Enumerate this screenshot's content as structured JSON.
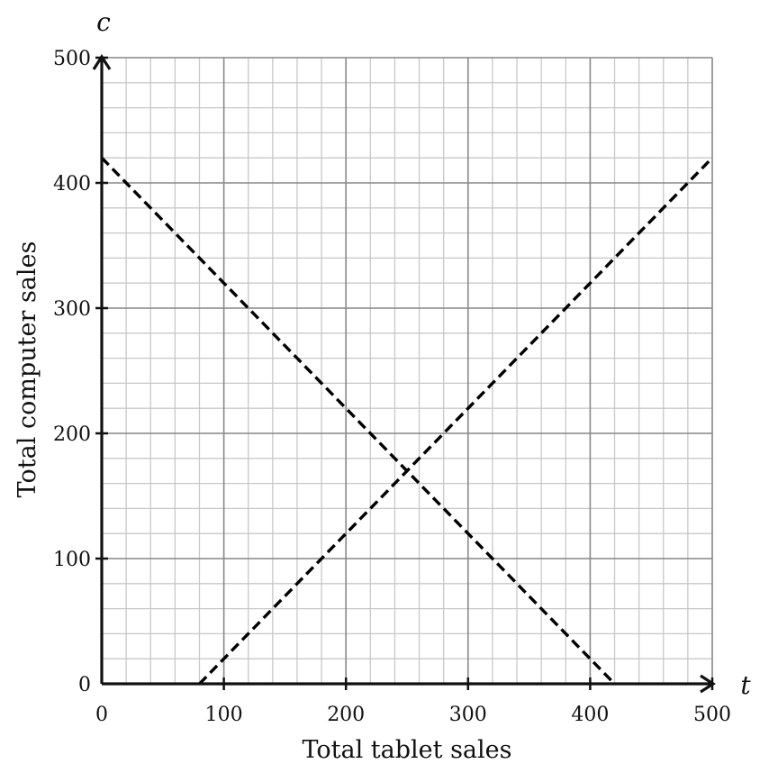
{
  "chart_data": {
    "type": "line",
    "title": "",
    "xlabel": "Total tablet sales",
    "ylabel": "Total computer sales",
    "x_variable": "t",
    "y_variable": "c",
    "xlim": [
      0,
      500
    ],
    "ylim": [
      0,
      500
    ],
    "x_ticks": [
      0,
      100,
      200,
      300,
      400,
      500
    ],
    "y_ticks": [
      0,
      100,
      200,
      300,
      400,
      500
    ],
    "x_tick_labels": [
      "0",
      "100",
      "200",
      "300",
      "400",
      "500"
    ],
    "y_tick_labels": [
      "0",
      "100",
      "200",
      "300",
      "400",
      "500"
    ],
    "minor_grid_step": 20,
    "grid": true,
    "legend": "none",
    "series": [
      {
        "line_style": "dashed",
        "color": "#000000",
        "x": [
          0,
          420
        ],
        "y": [
          420,
          0
        ]
      },
      {
        "line_style": "dashed",
        "color": "#000000",
        "x": [
          80,
          500
        ],
        "y": [
          0,
          420
        ]
      }
    ],
    "colors": {
      "axis": "#111111",
      "grid_minor": "#c8c8c8",
      "grid_major": "#8a8a8a",
      "line": "#000000"
    }
  }
}
